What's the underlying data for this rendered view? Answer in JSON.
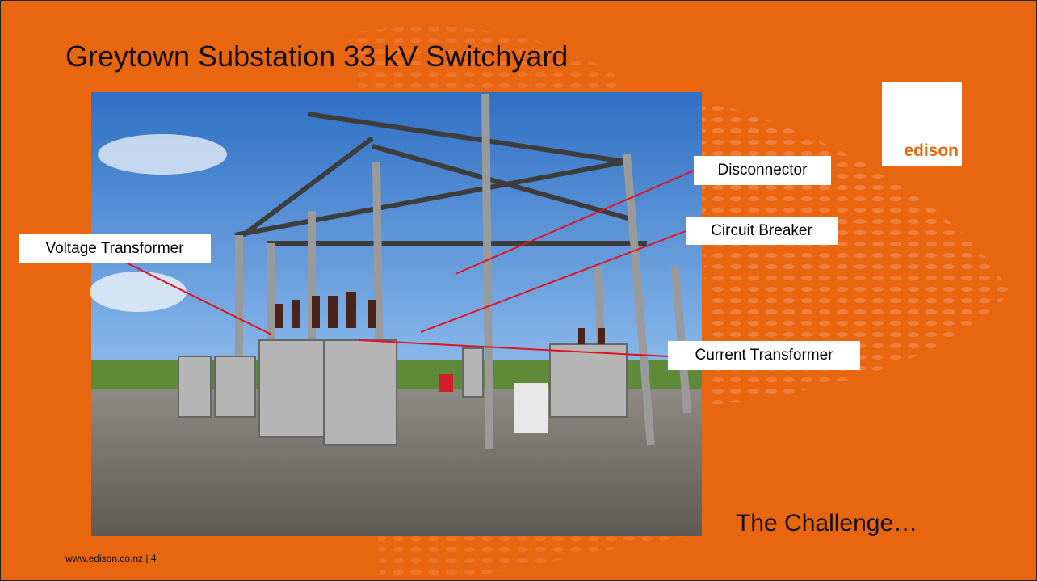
{
  "header": {
    "title": "Greytown Substation 33 kV Switchyard"
  },
  "callouts": [
    {
      "label": "Disconnector"
    },
    {
      "label": "Circuit Breaker"
    },
    {
      "label": "Voltage Transformer"
    },
    {
      "label": "Current Transformer"
    }
  ],
  "logo": {
    "text": "edison"
  },
  "subtitle": "The Challenge…",
  "footer": "www.edison.co.nz | 4"
}
